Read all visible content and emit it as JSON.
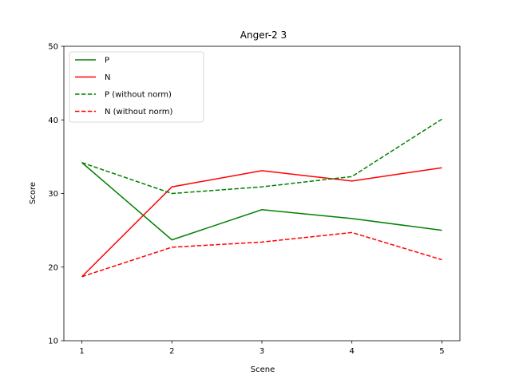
{
  "chart_data": {
    "type": "line",
    "title": "Anger-2 3",
    "xlabel": "Scene",
    "ylabel": "Score",
    "x": [
      1,
      2,
      3,
      4,
      5
    ],
    "xticks": [
      "1",
      "2",
      "3",
      "4",
      "5"
    ],
    "ylim": [
      10,
      50
    ],
    "yticks": [
      "10",
      "20",
      "30",
      "40",
      "50"
    ],
    "legend_position": "top-left",
    "grid": false,
    "series": [
      {
        "name": "P",
        "color": "#008000",
        "style": "solid",
        "values": [
          34.2,
          23.7,
          27.8,
          26.6,
          25.0
        ]
      },
      {
        "name": "N",
        "color": "#ff0000",
        "style": "solid",
        "values": [
          18.7,
          30.9,
          33.1,
          31.7,
          33.5
        ]
      },
      {
        "name": "P (without norm)",
        "color": "#008000",
        "style": "dashed",
        "values": [
          34.2,
          30.0,
          30.9,
          32.3,
          40.1
        ]
      },
      {
        "name": "N (without norm)",
        "color": "#ff0000",
        "style": "dashed",
        "values": [
          18.7,
          22.7,
          23.4,
          24.7,
          21.0
        ]
      }
    ]
  }
}
